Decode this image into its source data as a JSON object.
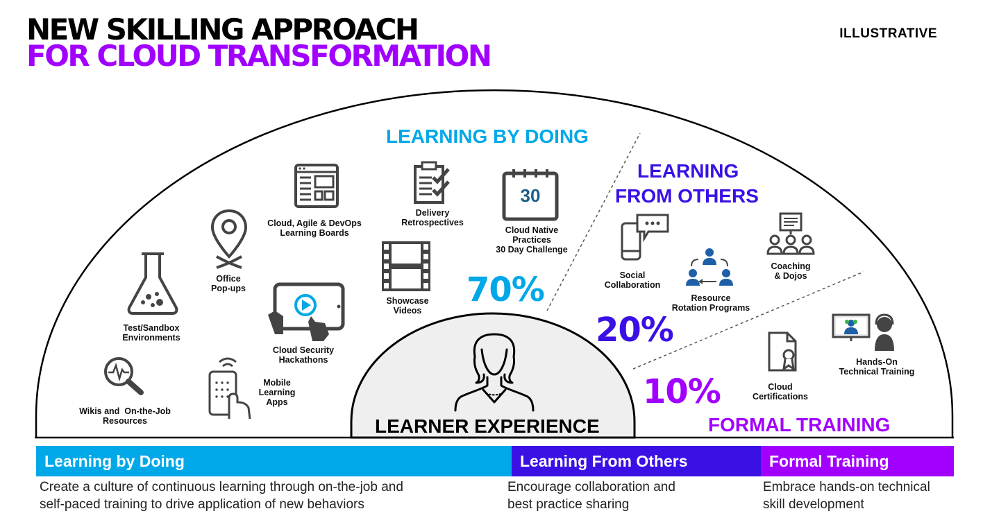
{
  "header": {
    "title_line1": "NEW SKILLING APPROACH",
    "title_line2": "FOR CLOUD TRANSFORMATION",
    "tag": "ILLUSTRATIVE"
  },
  "colors": {
    "doing": "#00a8e8",
    "others": "#3a10e5",
    "formal": "#a100ff",
    "icon": "#444444"
  },
  "center": {
    "label": "LEARNER EXPERIENCE"
  },
  "sections": {
    "doing": {
      "title": "LEARNING BY DOING",
      "percent": "70%",
      "items": [
        {
          "label": "Wikis and  On-the-Job\nResources",
          "icon": "magnifier-pulse-icon"
        },
        {
          "label": "Test/Sandbox\nEnvironments",
          "icon": "flask-icon"
        },
        {
          "label": "Office\nPop-ups",
          "icon": "location-pin-icon"
        },
        {
          "label": "Mobile\nLearning\nApps",
          "icon": "mobile-phone-icon"
        },
        {
          "label": "Cloud Security\nHackathons",
          "icon": "tablet-play-icon"
        },
        {
          "label": "Cloud, Agile & DevOps\nLearning Boards",
          "icon": "board-icon"
        },
        {
          "label": "Showcase\nVideos",
          "icon": "film-strip-icon"
        },
        {
          "label": "Delivery\nRetrospectives",
          "icon": "checklist-icon"
        },
        {
          "label": "Cloud Native\nPractices\n30 Day Challenge",
          "icon": "calendar-icon",
          "badge": "30"
        }
      ]
    },
    "others": {
      "title_line1": "LEARNING",
      "title_line2": "FROM OTHERS",
      "percent": "20%",
      "items": [
        {
          "label": "Social\nCollaboration",
          "icon": "phone-chat-icon"
        },
        {
          "label": "Resource\nRotation Programs",
          "icon": "people-rotation-icon"
        },
        {
          "label": "Coaching\n& Dojos",
          "icon": "group-presentation-icon"
        }
      ]
    },
    "formal": {
      "title": "FORMAL TRAINING",
      "percent": "10%",
      "items": [
        {
          "label": "Cloud\nCertifications",
          "icon": "certificate-icon"
        },
        {
          "label": "Hands-On\nTechnical Training",
          "icon": "headset-trainer-icon"
        }
      ]
    }
  },
  "bands": [
    {
      "label": "Learning by Doing",
      "color": "#00a8e8",
      "desc": "Create a culture of continuous learning through on-the-job and\nself-paced training to drive application of new behaviors"
    },
    {
      "label": "Learning From Others",
      "color": "#3a10e5",
      "desc": "Encourage collaboration and\nbest practice sharing"
    },
    {
      "label": "Formal Training",
      "color": "#a100ff",
      "desc": "Embrace hands-on technical\nskill development"
    }
  ]
}
